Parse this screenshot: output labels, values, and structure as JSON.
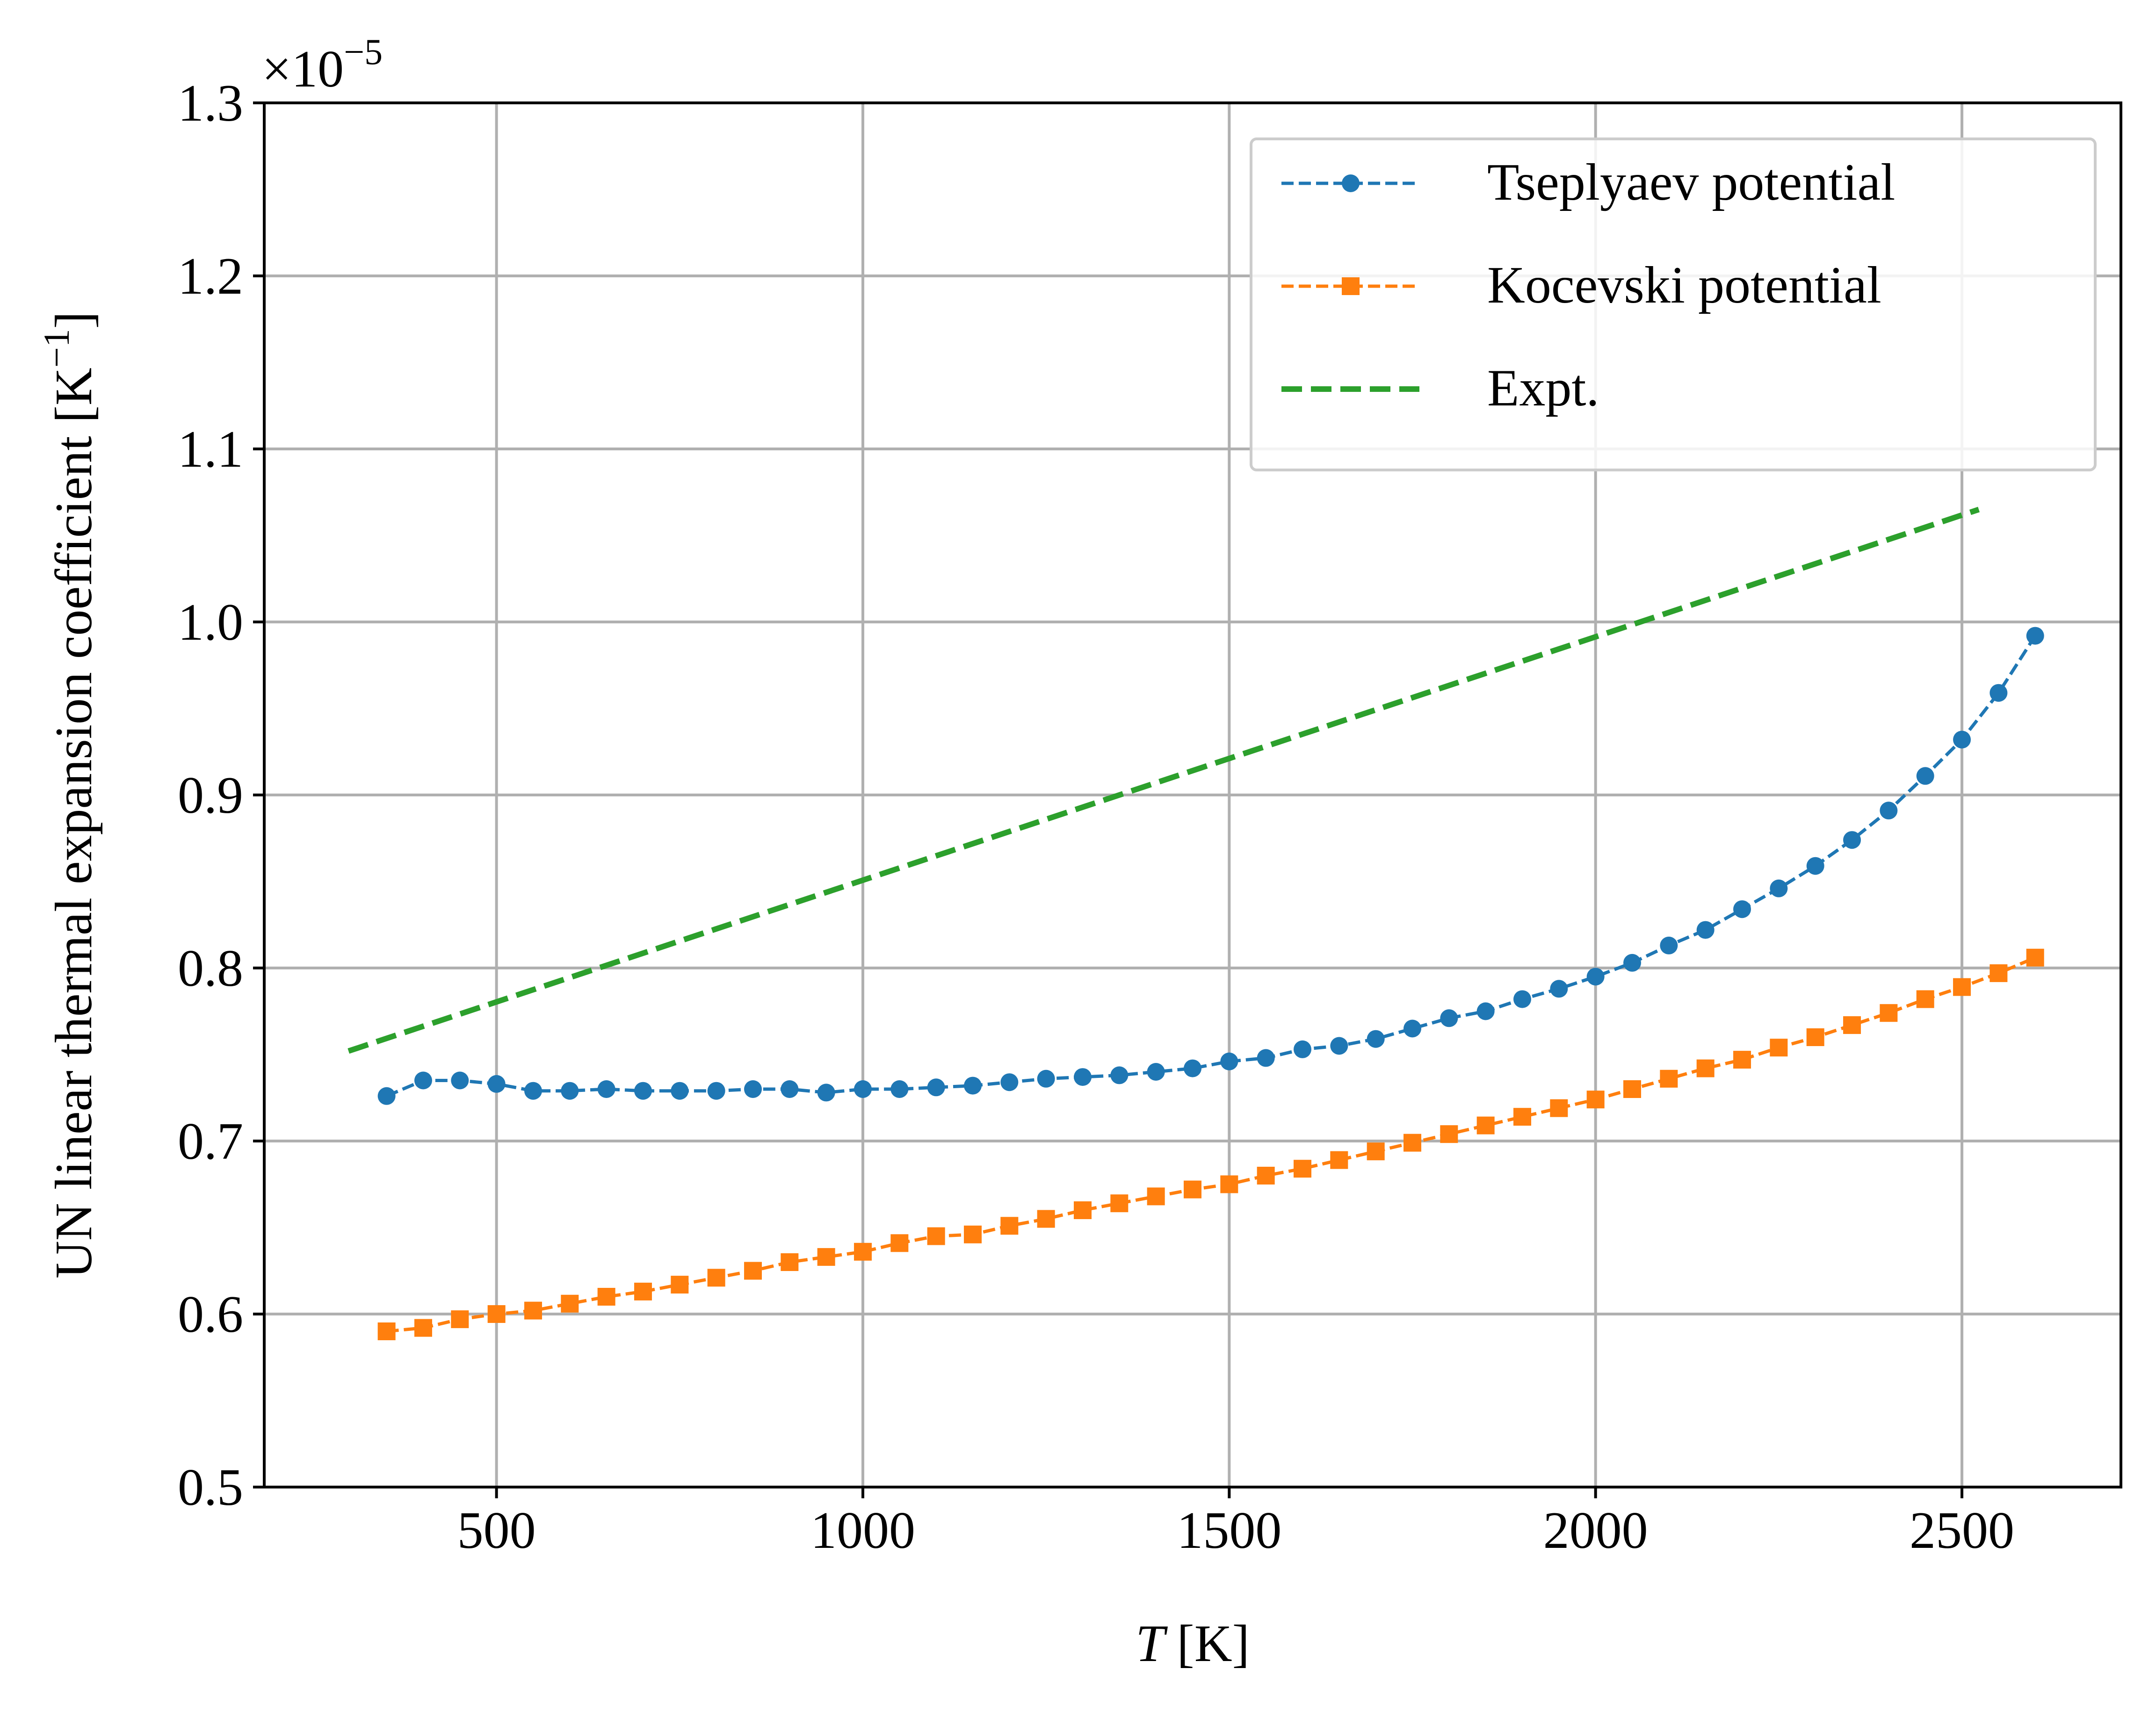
{
  "chart_data": {
    "type": "line",
    "xlabel_italic": "T",
    "xlabel_unit": "[K]",
    "ylabel_text": "UN linear thermal expansion coefficient [K",
    "ylabel_sup": "−1",
    "ylabel_close": "]",
    "y_offset_base": "×10",
    "y_offset_exp": "−5",
    "x_ticks": [
      500,
      1000,
      1500,
      2000,
      2500
    ],
    "x_tick_labels": [
      "500",
      "1000",
      "1500",
      "2000",
      "2500"
    ],
    "y_ticks": [
      0.5,
      0.6,
      0.7,
      0.8,
      0.9,
      1.0,
      1.1,
      1.2,
      1.3
    ],
    "y_tick_labels": [
      "0.5",
      "0.6",
      "0.7",
      "0.8",
      "0.9",
      "1.0",
      "1.1",
      "1.2",
      "1.3"
    ],
    "xlim": [
      183,
      2717
    ],
    "ylim": [
      0.5,
      1.3
    ],
    "grid": true,
    "legend_position": "top-right",
    "series": [
      {
        "name": "Tseplyaev potential",
        "color": "#1f77b4",
        "marker": "circle",
        "linestyle": "dashed",
        "x": [
          350,
          400,
          450,
          500,
          550,
          600,
          650,
          700,
          750,
          800,
          850,
          900,
          950,
          1000,
          1050,
          1100,
          1150,
          1200,
          1250,
          1300,
          1350,
          1400,
          1450,
          1500,
          1550,
          1600,
          1650,
          1700,
          1750,
          1800,
          1850,
          1900,
          1950,
          2000,
          2050,
          2100,
          2150,
          2200,
          2250,
          2300,
          2350,
          2400,
          2450,
          2500,
          2550,
          2600
        ],
        "y": [
          0.726,
          0.735,
          0.735,
          0.733,
          0.729,
          0.729,
          0.73,
          0.729,
          0.729,
          0.729,
          0.73,
          0.73,
          0.728,
          0.73,
          0.73,
          0.731,
          0.732,
          0.734,
          0.736,
          0.737,
          0.738,
          0.74,
          0.742,
          0.746,
          0.748,
          0.753,
          0.755,
          0.759,
          0.765,
          0.771,
          0.775,
          0.782,
          0.788,
          0.795,
          0.803,
          0.813,
          0.822,
          0.834,
          0.846,
          0.859,
          0.874,
          0.891,
          0.911,
          0.932,
          0.959,
          0.992
        ]
      },
      {
        "name": "Kocevski potential",
        "color": "#ff7f0e",
        "marker": "square",
        "linestyle": "dashed",
        "x": [
          350,
          400,
          450,
          500,
          550,
          600,
          650,
          700,
          750,
          800,
          850,
          900,
          950,
          1000,
          1050,
          1100,
          1150,
          1200,
          1250,
          1300,
          1350,
          1400,
          1450,
          1500,
          1550,
          1600,
          1650,
          1700,
          1750,
          1800,
          1850,
          1900,
          1950,
          2000,
          2050,
          2100,
          2150,
          2200,
          2250,
          2300,
          2350,
          2400,
          2450,
          2500,
          2550,
          2600
        ],
        "y": [
          0.59,
          0.592,
          0.597,
          0.6,
          0.602,
          0.606,
          0.61,
          0.613,
          0.617,
          0.621,
          0.625,
          0.63,
          0.633,
          0.636,
          0.641,
          0.645,
          0.646,
          0.651,
          0.655,
          0.66,
          0.664,
          0.668,
          0.672,
          0.675,
          0.68,
          0.684,
          0.689,
          0.694,
          0.699,
          0.704,
          0.709,
          0.714,
          0.719,
          0.724,
          0.73,
          0.736,
          0.742,
          0.747,
          0.754,
          0.76,
          0.767,
          0.774,
          0.782,
          0.789,
          0.797,
          0.806
        ]
      },
      {
        "name": "Expt.",
        "color": "#2ca02c",
        "marker": "none",
        "linestyle": "dashed",
        "x": [
          298,
          2523
        ],
        "y": [
          0.752,
          1.065
        ]
      }
    ]
  }
}
